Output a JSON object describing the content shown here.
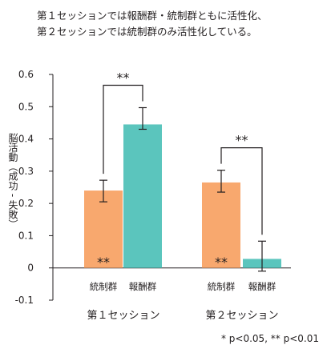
{
  "title_lines": [
    "第１セッションでは報酬群・統制群ともに活性化、",
    "第２セッションでは統制群のみ活性化している。"
  ],
  "chart_data": {
    "type": "bar",
    "ylabel": "脳活動（成功 - 失敗）",
    "ylim": [
      -0.1,
      0.6
    ],
    "yticks": [
      "0.6",
      "0.5",
      "0.4",
      "0.3",
      "0.2",
      "0.1",
      "0",
      "-0.1"
    ],
    "ytick_values": [
      0.6,
      0.5,
      0.4,
      0.3,
      0.2,
      0.1,
      0,
      -0.1
    ],
    "groups": [
      {
        "name": "第１セッション",
        "bars": [
          {
            "label": "統制群",
            "value": 0.24,
            "err_low": 0.205,
            "err_high": 0.272,
            "color": "#f8a86e",
            "marker": "**"
          },
          {
            "label": "報酬群",
            "value": 0.445,
            "err_low": 0.43,
            "err_high": 0.497,
            "color": "#5bc5bd",
            "marker": ""
          }
        ],
        "bracket_label": "**"
      },
      {
        "name": "第２セッション",
        "bars": [
          {
            "label": "統制群",
            "value": 0.265,
            "err_low": 0.235,
            "err_high": 0.303,
            "color": "#f8a86e",
            "marker": "**"
          },
          {
            "label": "報酬群",
            "value": 0.028,
            "err_low": -0.01,
            "err_high": 0.083,
            "color": "#5bc5bd",
            "marker": ""
          }
        ],
        "bracket_label": "**"
      }
    ],
    "note": "* p<0.05, ** p<0.01"
  }
}
